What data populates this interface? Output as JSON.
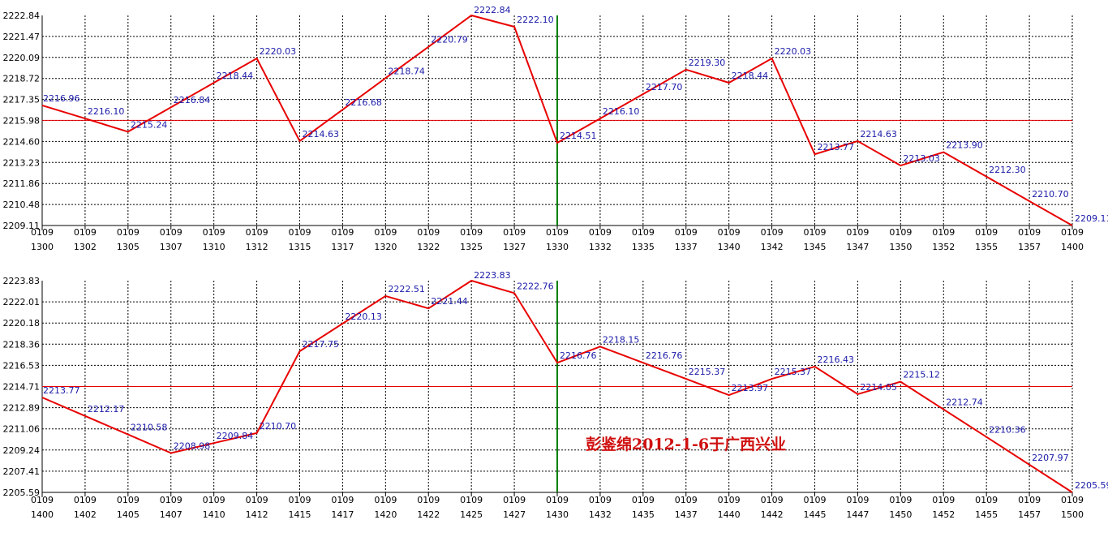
{
  "watermark": "彭鉴绵2012-1-6于广西兴业",
  "colors": {
    "line": "#e80000",
    "refline": "#e80000",
    "marker": "#008000",
    "label": "#1a1aa8",
    "grid": "#000000",
    "axis": "#000000"
  },
  "chart_data": [
    {
      "type": "line",
      "yticks": [
        "2222.84",
        "2221.47",
        "2220.09",
        "2218.72",
        "2217.35",
        "2215.98",
        "2214.60",
        "2213.23",
        "2211.86",
        "2210.48",
        "2209.11"
      ],
      "ylim": [
        2209.11,
        2222.84
      ],
      "reference_value": 2215.98,
      "marker_index": 12,
      "x_top": [
        "0109",
        "0109",
        "0109",
        "0109",
        "0109",
        "0109",
        "0109",
        "0109",
        "0109",
        "0109",
        "0109",
        "0109",
        "0109",
        "0109",
        "0109",
        "0109",
        "0109",
        "0109",
        "0109",
        "0109",
        "0109",
        "0109",
        "0109",
        "0109",
        "0109"
      ],
      "x_bottom": [
        "1300",
        "1302",
        "1305",
        "1307",
        "1310",
        "1312",
        "1315",
        "1317",
        "1320",
        "1322",
        "1325",
        "1327",
        "1330",
        "1332",
        "1335",
        "1337",
        "1340",
        "1342",
        "1345",
        "1347",
        "1350",
        "1352",
        "1355",
        "1357",
        "1400"
      ],
      "values": [
        2216.96,
        2216.1,
        2215.24,
        2216.84,
        2218.44,
        2220.03,
        2214.63,
        2216.68,
        2218.74,
        2220.79,
        2222.84,
        2222.1,
        2214.51,
        2216.1,
        2217.7,
        2219.3,
        2218.44,
        2220.03,
        2213.77,
        2214.63,
        2213.03,
        2213.9,
        2212.3,
        2210.7,
        2209.11
      ],
      "labels": [
        "2216.96",
        "2216.10",
        "2215.24",
        "2216.84",
        "2218.44",
        "2220.03",
        "2214.63",
        "2216.68",
        "2218.74",
        "2220.79",
        "2222.84",
        "2222.10",
        "2214.51",
        "2216.10",
        "2217.70",
        "2219.30",
        "2218.44",
        "2220.03",
        "2213.77",
        "2214.63",
        "2213.03",
        "2213.90",
        "2212.30",
        "2210.70",
        "2209.11"
      ]
    },
    {
      "type": "line",
      "yticks": [
        "2223.83",
        "2222.01",
        "2220.18",
        "2218.36",
        "2216.53",
        "2214.71",
        "2212.89",
        "2211.06",
        "2209.24",
        "2207.41",
        "2205.59"
      ],
      "ylim": [
        2205.59,
        2223.83
      ],
      "reference_value": 2214.71,
      "marker_index": 12,
      "x_top": [
        "0109",
        "0109",
        "0109",
        "0109",
        "0109",
        "0109",
        "0109",
        "0109",
        "0109",
        "0109",
        "0109",
        "0109",
        "0109",
        "0109",
        "0109",
        "0109",
        "0109",
        "0109",
        "0109",
        "0109",
        "0109",
        "0109",
        "0109",
        "0109",
        "0109"
      ],
      "x_bottom": [
        "1400",
        "1402",
        "1405",
        "1407",
        "1410",
        "1412",
        "1415",
        "1417",
        "1420",
        "1422",
        "1425",
        "1427",
        "1430",
        "1432",
        "1435",
        "1437",
        "1440",
        "1442",
        "1445",
        "1447",
        "1450",
        "1452",
        "1455",
        "1457",
        "1500"
      ],
      "values": [
        2213.77,
        2212.17,
        2210.58,
        2208.98,
        2209.84,
        2210.7,
        2217.75,
        2220.13,
        2222.51,
        2221.44,
        2223.83,
        2222.76,
        2216.76,
        2218.15,
        2216.76,
        2215.37,
        2213.97,
        2215.37,
        2216.43,
        2214.05,
        2215.12,
        2212.74,
        2210.36,
        2207.97,
        2205.59
      ],
      "labels": [
        "2213.77",
        "2212.17",
        "2210.58",
        "2208.98",
        "2209.84",
        "2210.70",
        "2217.75",
        "2220.13",
        "2222.51",
        "2221.44",
        "2223.83",
        "2222.76",
        "2216.76",
        "2218.15",
        "2216.76",
        "2215.37",
        "2213.97",
        "2215.37",
        "2216.43",
        "2214.05",
        "2215.12",
        "2212.74",
        "2210.36",
        "2207.97",
        "2205.59"
      ]
    }
  ]
}
